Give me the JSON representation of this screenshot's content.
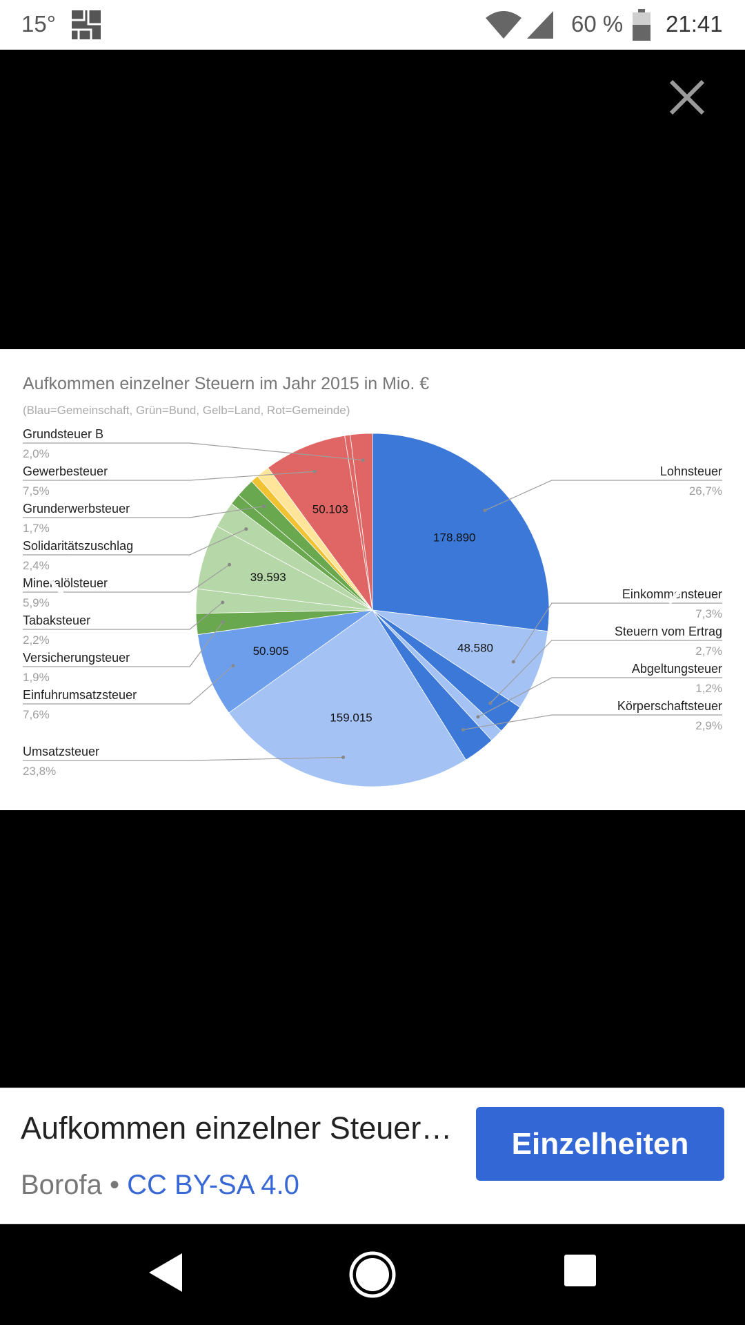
{
  "status_bar": {
    "temperature": "15°",
    "battery_percent": "60 %",
    "time": "21:41",
    "icons": [
      "weather-map-icon",
      "wifi-icon",
      "cell-signal-icon",
      "battery-icon"
    ]
  },
  "viewer": {
    "close_icon": "close-icon",
    "prev_icon": "chevron-left-icon",
    "next_icon": "chevron-right-icon"
  },
  "chart_data": {
    "type": "pie",
    "title": "Aufkommen einzelner Steuern im Jahr 2015 in Mio. €",
    "subtitle": "(Blau=Gemeinschaft, Grün=Bund, Gelb=Land, Rot=Gemeinde)",
    "slices": [
      {
        "name": "Lohnsteuer",
        "percent_label": "26,7%",
        "percent": 26.7,
        "value_label": "178.890",
        "color": "#3c78d8",
        "side": "right"
      },
      {
        "name": "Einkommensteuer",
        "percent_label": "7,3%",
        "percent": 7.3,
        "value_label": "48.580",
        "color": "#a4c2f4",
        "side": "right"
      },
      {
        "name": "Steuern vom Ertrag",
        "percent_label": "2,7%",
        "percent": 2.7,
        "value_label": "",
        "color": "#3c78d8",
        "side": "right"
      },
      {
        "name": "Abgeltungsteuer",
        "percent_label": "1,2%",
        "percent": 1.2,
        "value_label": "",
        "color": "#a4c2f4",
        "side": "right"
      },
      {
        "name": "Körperschaftsteuer",
        "percent_label": "2,9%",
        "percent": 2.9,
        "value_label": "",
        "color": "#3c78d8",
        "side": "right"
      },
      {
        "name": "Umsatzsteuer",
        "percent_label": "23,8%",
        "percent": 23.8,
        "value_label": "159.015",
        "color": "#a4c2f4",
        "side": "left"
      },
      {
        "name": "Einfuhrumsatzsteuer",
        "percent_label": "7,6%",
        "percent": 7.6,
        "value_label": "50.905",
        "color": "#6d9eeb",
        "side": "left"
      },
      {
        "name": "Versicherungsteuer",
        "percent_label": "1,9%",
        "percent": 1.9,
        "value_label": "",
        "color": "#6aa84f",
        "side": "left"
      },
      {
        "name": "Tabaksteuer",
        "percent_label": "2,2%",
        "percent": 2.2,
        "value_label": "",
        "color": "#b6d7a8",
        "side": "left"
      },
      {
        "name": "Mineralölsteuer",
        "percent_label": "5,9%",
        "percent": 5.9,
        "value_label": "39.593",
        "color": "#b6d7a8",
        "side": "left"
      },
      {
        "name": "Solidaritätszuschlag",
        "percent_label": "2,4%",
        "percent": 2.4,
        "value_label": "",
        "color": "#b6d7a8",
        "side": "left"
      },
      {
        "name": "Grunderwerbsteuer",
        "percent_label": "1,7%",
        "percent": 1.7,
        "value_label": "",
        "color": "#6aa84f",
        "side": "left"
      },
      {
        "name": "Gewerbesteuer",
        "percent_label": "7,5%",
        "percent": 7.5,
        "value_label": "50.103",
        "color": "#e06666",
        "side": "left"
      },
      {
        "name": "Grundsteuer B",
        "percent_label": "2,0%",
        "percent": 2.0,
        "value_label": "",
        "color": "#e06666",
        "side": "left"
      }
    ],
    "filler_slices": [
      {
        "percent": 1.0,
        "color": "#6aa84f"
      },
      {
        "percent": 0.7,
        "color": "#f1c232"
      },
      {
        "percent": 1.2,
        "color": "#ffe599"
      },
      {
        "percent": 0.5,
        "color": "#e06666"
      }
    ]
  },
  "info": {
    "title": "Aufkommen einzelner Steuern im Jahr 2015 in Mio. €",
    "author": "Borofa",
    "separator": "•",
    "license": "CC BY-SA 4.0",
    "details_label": "Einzelheiten"
  },
  "system_nav": {
    "icons": [
      "back-icon",
      "home-icon",
      "recents-icon"
    ]
  }
}
